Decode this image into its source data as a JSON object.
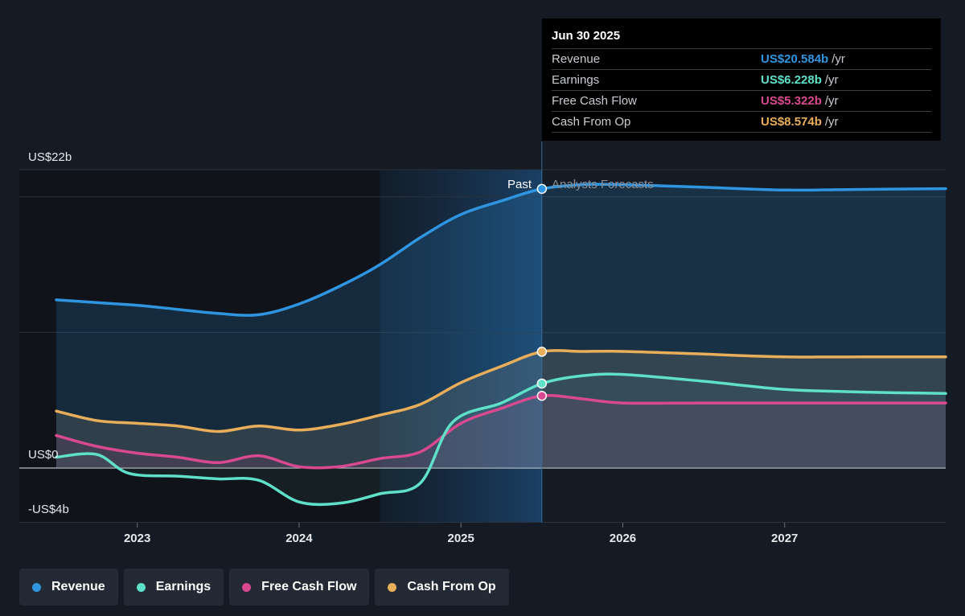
{
  "chart_data": {
    "type": "line",
    "y_axis": {
      "labels": [
        "US$22b",
        "US$0",
        "-US$4b"
      ],
      "ylim": [
        -4,
        22
      ]
    },
    "x_axis": {
      "ticks": [
        "2023",
        "2024",
        "2025",
        "2026",
        "2027"
      ],
      "xlim": [
        2022.5,
        2027.995
      ]
    },
    "sections": {
      "past": "Past",
      "forecast": "Analysts Forecasts",
      "highlight_start": 2024.5,
      "divider": 2025.5
    },
    "series": [
      {
        "name": "Revenue",
        "color": "#2f95e0",
        "x": [
          2022.5,
          2022.75,
          2023.0,
          2023.25,
          2023.5,
          2023.75,
          2024.0,
          2024.25,
          2024.5,
          2024.75,
          2025.0,
          2025.25,
          2025.5,
          2025.75,
          2026.0,
          2026.5,
          2027.0,
          2027.5,
          2027.995
        ],
        "values": [
          12.4,
          12.2,
          12.0,
          11.7,
          11.4,
          11.3,
          12.1,
          13.4,
          15.0,
          17.0,
          18.7,
          19.7,
          20.584,
          20.9,
          20.9,
          20.7,
          20.5,
          20.55,
          20.6
        ]
      },
      {
        "name": "Earnings",
        "color": "#5fe0c8",
        "x": [
          2022.5,
          2022.75,
          2022.95,
          2023.25,
          2023.5,
          2023.75,
          2024.0,
          2024.25,
          2024.5,
          2024.75,
          2024.95,
          2025.25,
          2025.5,
          2025.75,
          2026.0,
          2026.5,
          2027.0,
          2027.5,
          2027.995
        ],
        "values": [
          0.8,
          1.0,
          -0.4,
          -0.6,
          -0.8,
          -0.9,
          -2.5,
          -2.6,
          -1.9,
          -1.1,
          3.4,
          4.8,
          6.228,
          6.8,
          6.9,
          6.4,
          5.8,
          5.6,
          5.5
        ]
      },
      {
        "name": "Free Cash Flow",
        "color": "#d9498f",
        "x": [
          2022.5,
          2022.75,
          2023.0,
          2023.25,
          2023.5,
          2023.75,
          2024.0,
          2024.25,
          2024.5,
          2024.75,
          2025.0,
          2025.25,
          2025.5,
          2025.75,
          2026.0,
          2026.5,
          2027.0,
          2027.5,
          2027.995
        ],
        "values": [
          2.4,
          1.6,
          1.1,
          0.8,
          0.4,
          0.9,
          0.1,
          0.1,
          0.7,
          1.2,
          3.3,
          4.4,
          5.322,
          5.1,
          4.8,
          4.8,
          4.8,
          4.8,
          4.8
        ]
      },
      {
        "name": "Cash From Op",
        "color": "#e8ae5a",
        "x": [
          2022.5,
          2022.75,
          2023.0,
          2023.25,
          2023.5,
          2023.75,
          2024.0,
          2024.25,
          2024.5,
          2024.75,
          2025.0,
          2025.25,
          2025.5,
          2025.75,
          2026.0,
          2026.5,
          2027.0,
          2027.5,
          2027.995
        ],
        "values": [
          4.2,
          3.5,
          3.3,
          3.1,
          2.7,
          3.1,
          2.8,
          3.2,
          3.9,
          4.7,
          6.3,
          7.5,
          8.574,
          8.6,
          8.6,
          8.4,
          8.2,
          8.2,
          8.2
        ]
      }
    ],
    "tooltip": {
      "date": "Jun 30 2025",
      "rows": [
        {
          "label": "Revenue",
          "value": "US$20.584b",
          "unit": "/yr",
          "color": "#2f95e0"
        },
        {
          "label": "Earnings",
          "value": "US$6.228b",
          "unit": "/yr",
          "color": "#5fe0c8"
        },
        {
          "label": "Free Cash Flow",
          "value": "US$5.322b",
          "unit": "/yr",
          "color": "#d9498f"
        },
        {
          "label": "Cash From Op",
          "value": "US$8.574b",
          "unit": "/yr",
          "color": "#e8ae5a"
        }
      ]
    },
    "legend": {
      "placement": "bottom-left",
      "items": [
        {
          "label": "Revenue",
          "color": "#2f95e0"
        },
        {
          "label": "Earnings",
          "color": "#5fe0c8"
        },
        {
          "label": "Free Cash Flow",
          "color": "#d9498f"
        },
        {
          "label": "Cash From Op",
          "color": "#e8ae5a"
        }
      ]
    }
  }
}
